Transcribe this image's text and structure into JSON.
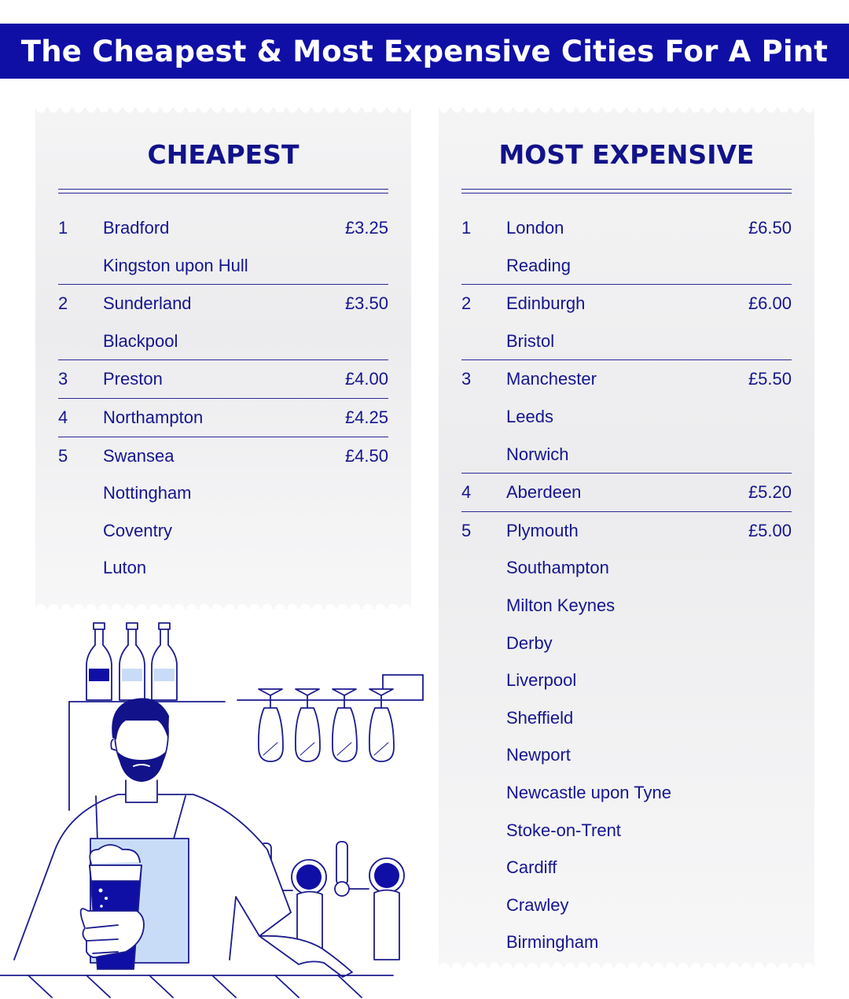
{
  "title": "The Cheapest & Most Expensive Cities For A Pint",
  "cheapest": {
    "heading": "CHEAPEST",
    "groups": [
      {
        "rank": "1",
        "price": "£3.25",
        "cities": [
          "Bradford",
          "Kingston upon Hull"
        ]
      },
      {
        "rank": "2",
        "price": "£3.50",
        "cities": [
          "Sunderland",
          "Blackpool"
        ]
      },
      {
        "rank": "3",
        "price": "£4.00",
        "cities": [
          "Preston"
        ]
      },
      {
        "rank": "4",
        "price": "£4.25",
        "cities": [
          "Northampton"
        ]
      },
      {
        "rank": "5",
        "price": "£4.50",
        "cities": [
          "Swansea",
          "Nottingham",
          "Coventry",
          "Luton"
        ]
      }
    ]
  },
  "most_expensive": {
    "heading": "MOST EXPENSIVE",
    "groups": [
      {
        "rank": "1",
        "price": "£6.50",
        "cities": [
          "London",
          "Reading"
        ]
      },
      {
        "rank": "2",
        "price": "£6.00",
        "cities": [
          "Edinburgh",
          "Bristol"
        ]
      },
      {
        "rank": "3",
        "price": "£5.50",
        "cities": [
          "Manchester",
          "Leeds",
          "Norwich"
        ]
      },
      {
        "rank": "4",
        "price": "£5.20",
        "cities": [
          "Aberdeen"
        ]
      },
      {
        "rank": "5",
        "price": "£5.00",
        "cities": [
          "Plymouth",
          "Southampton",
          "Milton Keynes",
          "Derby",
          "Liverpool",
          "Sheffield",
          "Newport",
          "Newcastle upon Tyne",
          "Stoke-on-Trent",
          "Cardiff",
          "Crawley",
          "Birmingham"
        ]
      }
    ]
  },
  "illustration": {
    "subject": "bartender-with-pint",
    "colors": {
      "line": "#1b1b8f",
      "accent": "#0f0fa6",
      "light_fill": "#c9dcf7",
      "banner": "#0f0fa6"
    }
  }
}
